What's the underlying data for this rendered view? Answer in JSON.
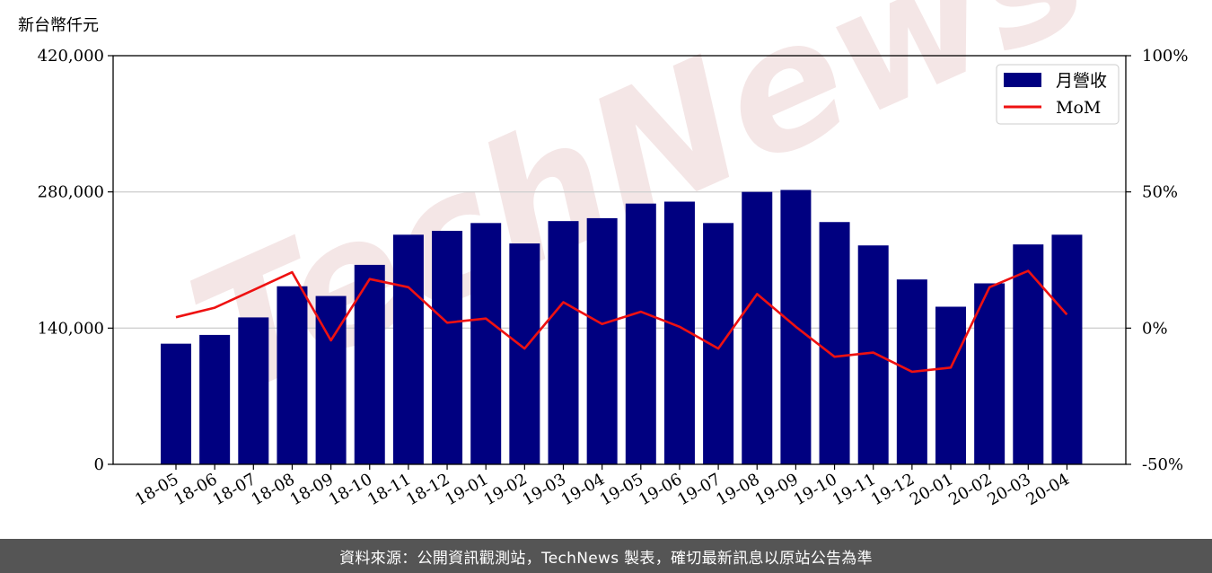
{
  "chart_data": {
    "type": "bar",
    "y_unit_label": "新台幣仟元",
    "categories": [
      "18-05",
      "18-06",
      "18-07",
      "18-08",
      "18-09",
      "18-10",
      "18-11",
      "18-12",
      "19-01",
      "19-02",
      "19-03",
      "19-04",
      "19-05",
      "19-06",
      "19-07",
      "19-08",
      "19-09",
      "19-10",
      "19-11",
      "19-12",
      "20-01",
      "20-02",
      "20-03",
      "20-04"
    ],
    "series": [
      {
        "name": "月營收",
        "type": "bar",
        "axis": "left",
        "color": "#000080",
        "values": [
          124000,
          133000,
          151000,
          183000,
          173000,
          205000,
          236000,
          240000,
          248000,
          227000,
          250000,
          253000,
          268000,
          270000,
          248000,
          280000,
          282000,
          249000,
          225000,
          190000,
          162000,
          186000,
          226000,
          236000
        ]
      },
      {
        "name": "MoM",
        "type": "line",
        "axis": "right",
        "color": "#ee1111",
        "values": [
          4.0,
          7.5,
          14.0,
          20.5,
          -4.5,
          18.0,
          15.0,
          2.0,
          3.5,
          -7.5,
          9.5,
          1.5,
          6.0,
          0.5,
          -7.5,
          12.5,
          0.5,
          -10.5,
          -9.0,
          -16.0,
          -14.5,
          15.0,
          21.0,
          5.0
        ]
      }
    ],
    "y_left": {
      "ylim": [
        0,
        420000
      ],
      "ticks": [
        "0",
        "140,000",
        "280,000",
        "420,000"
      ],
      "tick_values": [
        0,
        140000,
        280000,
        420000
      ]
    },
    "y_right": {
      "ylim": [
        -50,
        100
      ],
      "ticks": [
        "-50%",
        "0%",
        "50%",
        "100%"
      ],
      "tick_values": [
        -50,
        0,
        50,
        100
      ]
    },
    "grid": "horizontal",
    "legend_position": "top-right",
    "watermark": "TechNews"
  },
  "footer": {
    "text": "資料來源：公開資訊觀測站，TechNews 製表，確切最新訊息以原站公告為準"
  }
}
